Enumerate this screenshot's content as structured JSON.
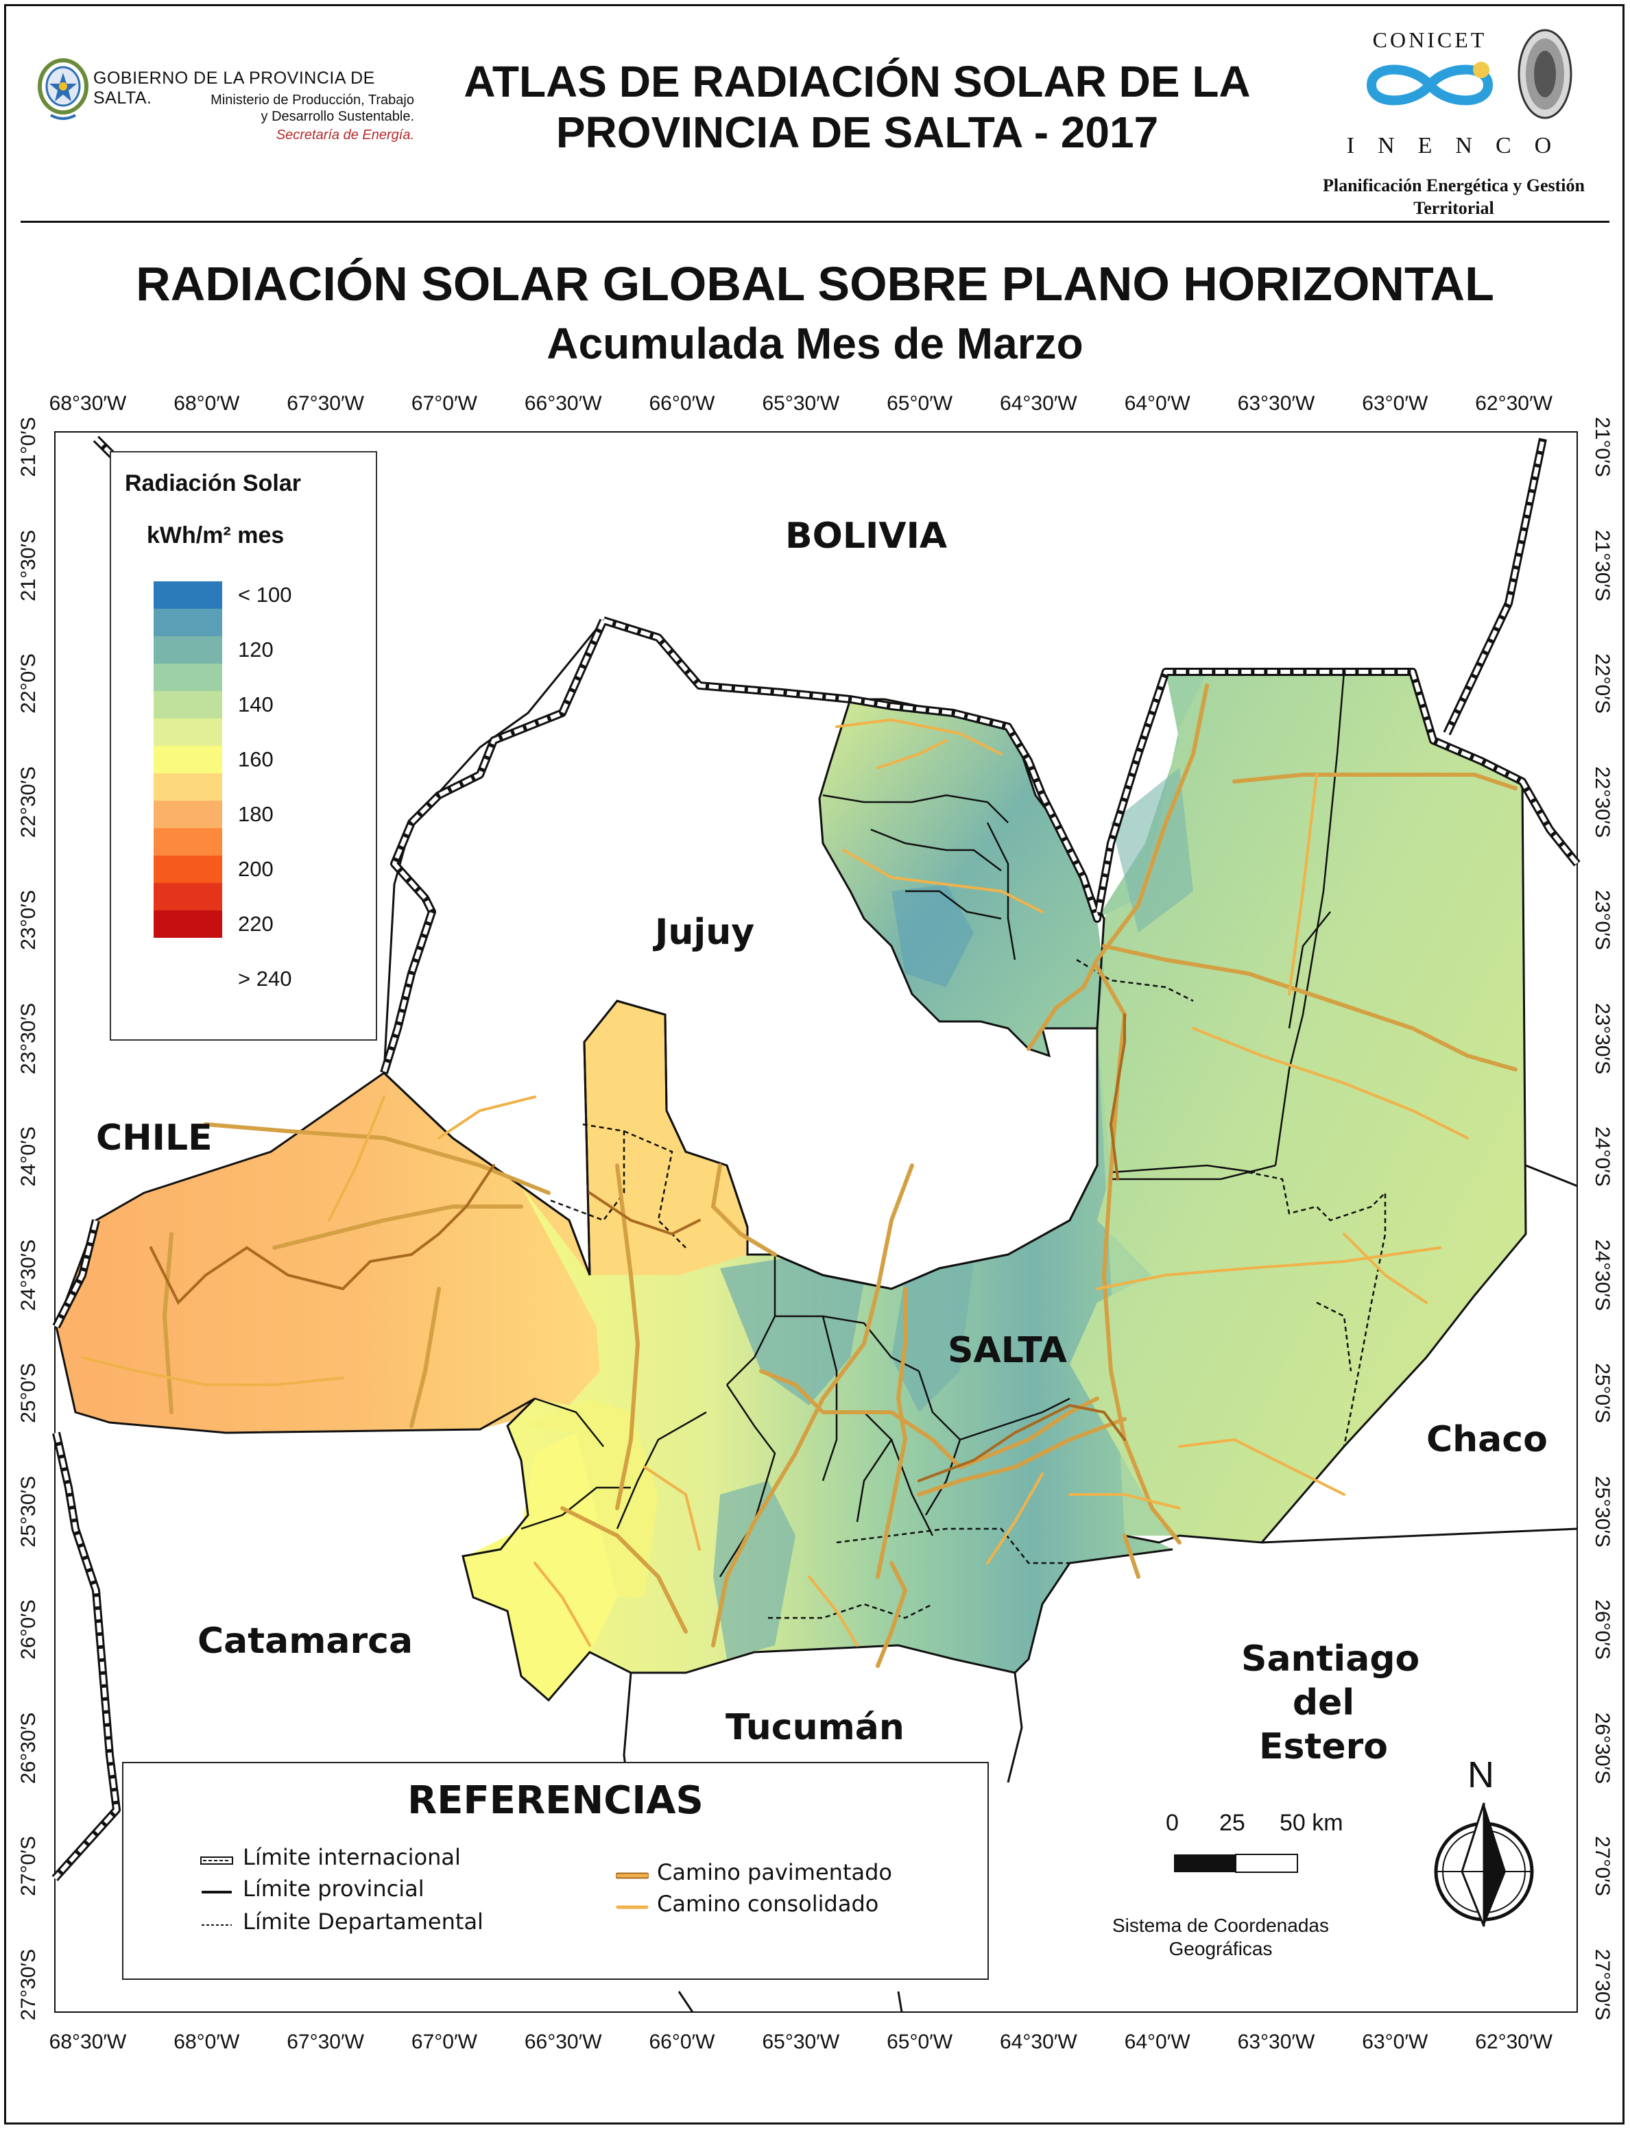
{
  "header": {
    "gov_name": "GOBIERNO DE LA PROVINCIA DE SALTA.",
    "gov_ministry_1": "Ministerio de Producción, Trabajo",
    "gov_ministry_2": "y Desarrollo Sustentable.",
    "gov_secretariat": "Secretaría de Energía.",
    "atlas_title_1": "ATLAS DE RADIACIÓN SOLAR DE LA",
    "atlas_title_2": "PROVINCIA DE SALTA - 2017",
    "conicet": "CONICET",
    "inenco": "INENCO",
    "inenco_sub_1": "Planificación Energética y Gestión",
    "inenco_sub_2": "Territorial"
  },
  "map": {
    "title": "RADIACIÓN SOLAR GLOBAL SOBRE PLANO HORIZONTAL",
    "subtitle": "Acumulada Mes de Marzo",
    "lon_ticks": [
      "68°30′W",
      "68°0′W",
      "67°30′W",
      "67°0′W",
      "66°30′W",
      "66°0′W",
      "65°30′W",
      "65°0′W",
      "64°30′W",
      "64°0′W",
      "63°30′W",
      "63°0′W",
      "62°30′W"
    ],
    "lat_ticks": [
      "21°0′S",
      "21°30′S",
      "22°0′S",
      "22°30′S",
      "23°0′S",
      "23°30′S",
      "24°0′S",
      "24°30′S",
      "25°0′S",
      "25°30′S",
      "26°0′S",
      "26°30′S",
      "27°0′S",
      "27°30′S"
    ],
    "regions": {
      "bolivia": "BOLIVIA",
      "jujuy": "Jujuy",
      "chile": "CHILE",
      "salta": "SALTA",
      "chaco": "Chaco",
      "catamarca": "Catamarca",
      "tucuman": "Tucumán",
      "santiago_1": "Santiago",
      "santiago_2": "del",
      "santiago_3": "Estero"
    }
  },
  "legend": {
    "title": "Radiación Solar",
    "unit": "kWh/m² mes",
    "labels": [
      "< 100",
      "120",
      "140",
      "160",
      "180",
      "200",
      "220",
      "> 240"
    ],
    "colors": [
      "#2b7bba",
      "#5a9fb6",
      "#7ab5ab",
      "#9dd0a4",
      "#bfe19b",
      "#e2ef94",
      "#fafa7e",
      "#fed97b",
      "#fcb168",
      "#fd8a3c",
      "#f65b1c",
      "#e4341a",
      "#c50f10"
    ]
  },
  "references": {
    "title": "REFERENCIAS",
    "intl": "Límite internacional",
    "prov": "Límite provincial",
    "dept": "Límite Departamental",
    "paved": "Camino pavimentado",
    "consolidated": "Camino consolidado"
  },
  "scale": {
    "labels": [
      "0",
      "25",
      "50 km"
    ]
  },
  "north": "N",
  "crs_note_1": "Sistema de Coordenadas",
  "crs_note_2": "Geográficas"
}
